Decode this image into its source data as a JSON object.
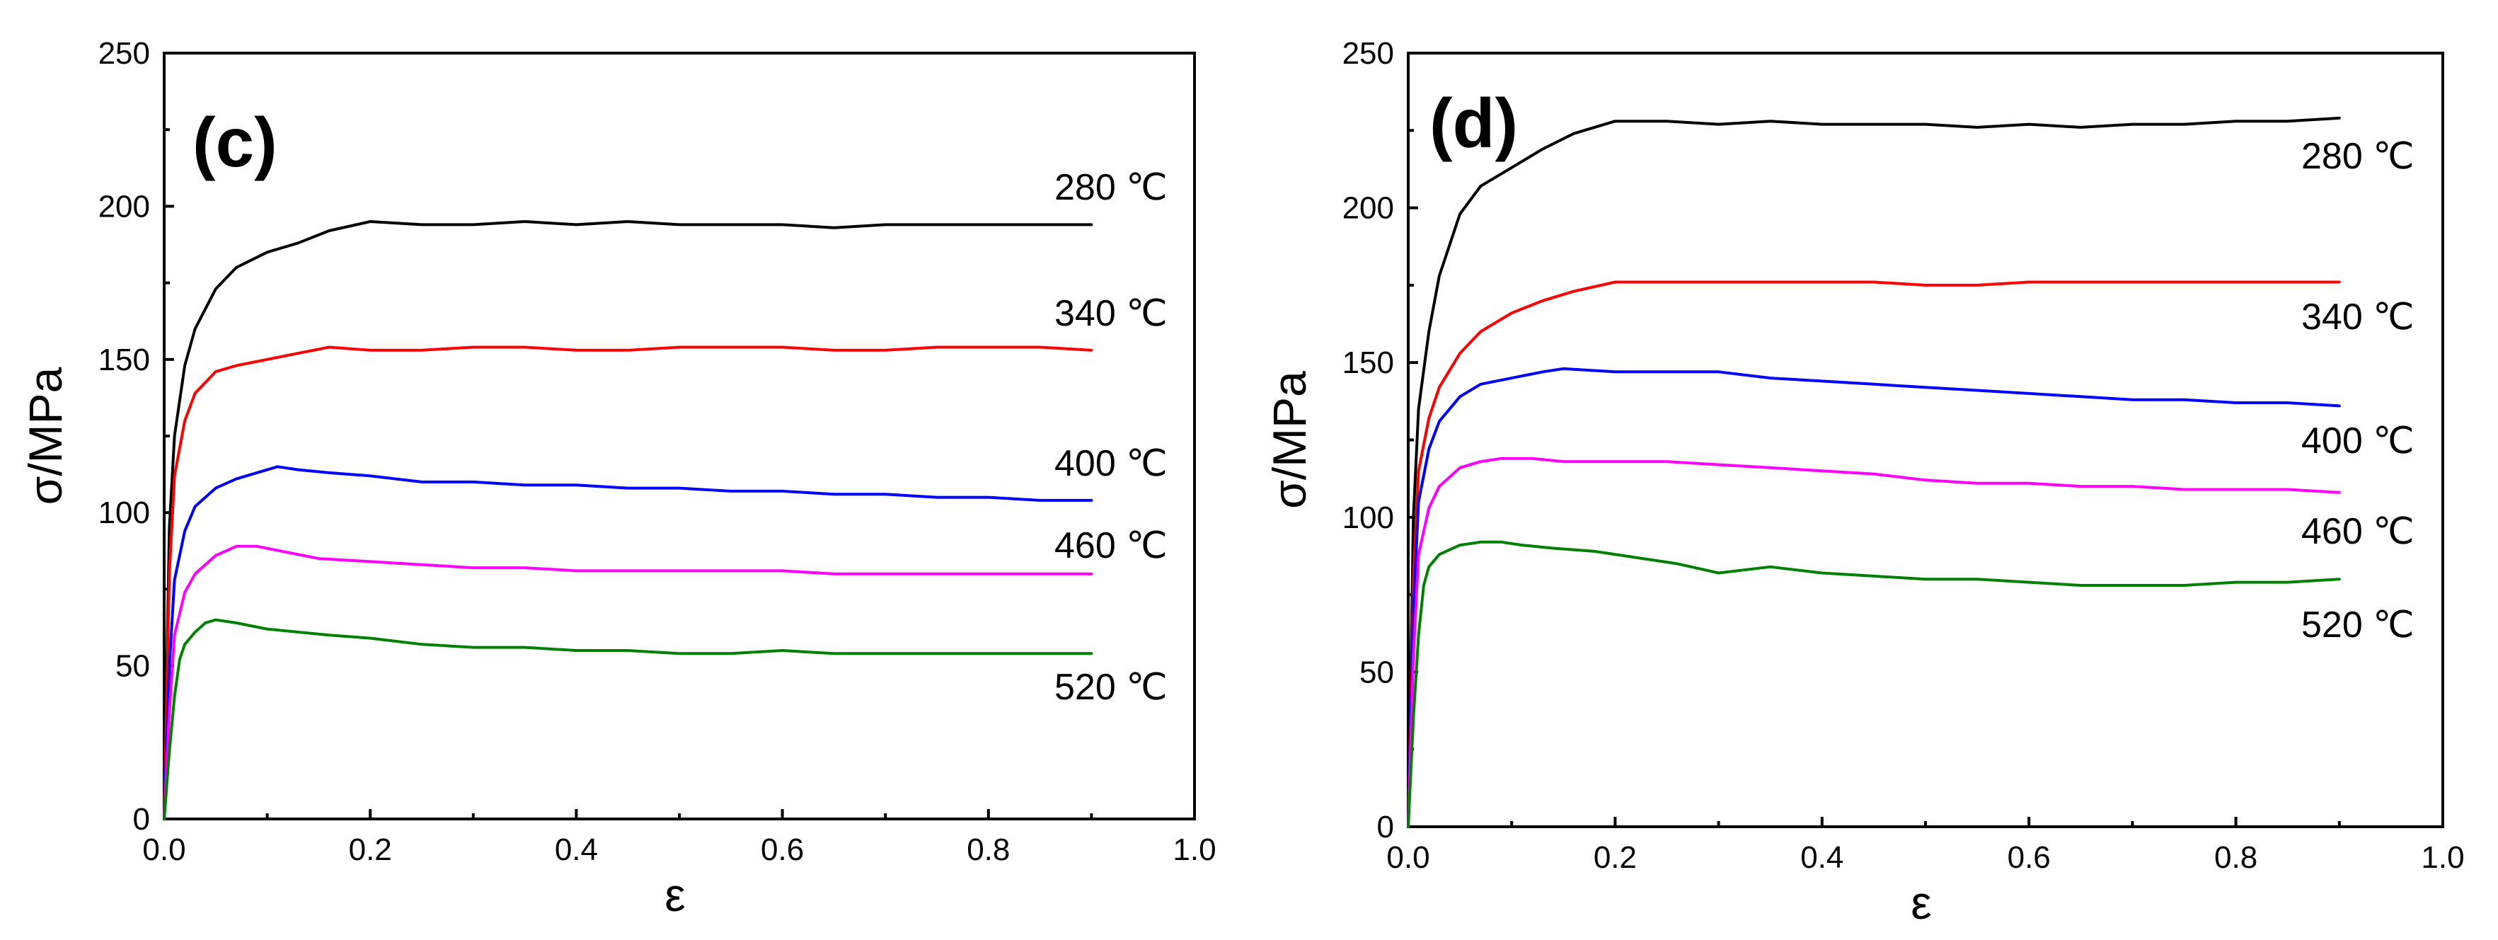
{
  "chart_data": [
    {
      "type": "line",
      "panel_label": "(c)",
      "xlabel": "ε",
      "ylabel": "σ/MPa",
      "xlim": [
        0,
        1.0
      ],
      "ylim": [
        0,
        250
      ],
      "xticks": [
        "0.0",
        "0.2",
        "0.4",
        "0.6",
        "0.8",
        "1.0"
      ],
      "yticks": [
        "0",
        "50",
        "100",
        "150",
        "200",
        "250"
      ],
      "grid": false,
      "series": [
        {
          "name": "280 ℃",
          "color": "#000000",
          "x": [
            0,
            0.005,
            0.01,
            0.02,
            0.03,
            0.05,
            0.07,
            0.1,
            0.13,
            0.16,
            0.2,
            0.25,
            0.3,
            0.35,
            0.4,
            0.45,
            0.5,
            0.55,
            0.6,
            0.65,
            0.7,
            0.75,
            0.8,
            0.85,
            0.9
          ],
          "y": [
            0,
            95,
            125,
            148,
            160,
            173,
            180,
            185,
            188,
            192,
            195,
            194,
            194,
            195,
            194,
            195,
            194,
            194,
            194,
            193,
            194,
            194,
            194,
            194,
            194
          ]
        },
        {
          "name": "340 ℃",
          "color": "#ff0000",
          "x": [
            0,
            0.005,
            0.01,
            0.02,
            0.03,
            0.05,
            0.07,
            0.1,
            0.13,
            0.16,
            0.2,
            0.25,
            0.3,
            0.35,
            0.4,
            0.45,
            0.5,
            0.55,
            0.6,
            0.65,
            0.7,
            0.75,
            0.8,
            0.85,
            0.9
          ],
          "y": [
            0,
            80,
            112,
            130,
            139,
            146,
            148,
            150,
            152,
            154,
            153,
            153,
            154,
            154,
            153,
            153,
            154,
            154,
            154,
            153,
            153,
            154,
            154,
            154,
            153
          ]
        },
        {
          "name": "400 ℃",
          "color": "#0000ff",
          "x": [
            0,
            0.005,
            0.01,
            0.02,
            0.03,
            0.05,
            0.07,
            0.09,
            0.11,
            0.13,
            0.16,
            0.2,
            0.25,
            0.3,
            0.35,
            0.4,
            0.45,
            0.5,
            0.55,
            0.6,
            0.65,
            0.7,
            0.75,
            0.8,
            0.85,
            0.9
          ],
          "y": [
            0,
            50,
            78,
            94,
            102,
            108,
            111,
            113,
            115,
            114,
            113,
            112,
            110,
            110,
            109,
            109,
            108,
            108,
            107,
            107,
            106,
            106,
            105,
            105,
            104,
            104
          ]
        },
        {
          "name": "460 ℃",
          "color": "#ff00ff",
          "x": [
            0,
            0.005,
            0.01,
            0.02,
            0.03,
            0.05,
            0.07,
            0.09,
            0.12,
            0.15,
            0.2,
            0.25,
            0.3,
            0.35,
            0.4,
            0.45,
            0.5,
            0.55,
            0.6,
            0.65,
            0.7,
            0.75,
            0.8,
            0.85,
            0.9
          ],
          "y": [
            0,
            35,
            60,
            74,
            80,
            86,
            89,
            89,
            87,
            85,
            84,
            83,
            82,
            82,
            81,
            81,
            81,
            81,
            81,
            80,
            80,
            80,
            80,
            80,
            80
          ]
        },
        {
          "name": "520 ℃",
          "color": "#008000",
          "x": [
            0,
            0.005,
            0.01,
            0.015,
            0.02,
            0.03,
            0.04,
            0.05,
            0.07,
            0.1,
            0.13,
            0.16,
            0.2,
            0.25,
            0.3,
            0.35,
            0.4,
            0.45,
            0.5,
            0.55,
            0.6,
            0.65,
            0.7,
            0.75,
            0.8,
            0.85,
            0.9
          ],
          "y": [
            0,
            22,
            40,
            52,
            57,
            61,
            64,
            65,
            64,
            62,
            61,
            60,
            59,
            57,
            56,
            56,
            55,
            55,
            54,
            54,
            55,
            54,
            54,
            54,
            54,
            54,
            54
          ]
        }
      ]
    },
    {
      "type": "line",
      "panel_label": "(d)",
      "xlabel": "ε",
      "ylabel": "σ/MPa",
      "xlim": [
        0,
        1.0
      ],
      "ylim": [
        0,
        250
      ],
      "xticks": [
        "0.0",
        "0.2",
        "0.4",
        "0.6",
        "0.8",
        "1.0"
      ],
      "yticks": [
        "0",
        "50",
        "100",
        "150",
        "200",
        "250"
      ],
      "grid": false,
      "series": [
        {
          "name": "280 ℃",
          "color": "#000000",
          "x": [
            0,
            0.005,
            0.01,
            0.02,
            0.03,
            0.05,
            0.07,
            0.1,
            0.13,
            0.16,
            0.2,
            0.25,
            0.3,
            0.35,
            0.4,
            0.45,
            0.5,
            0.55,
            0.6,
            0.65,
            0.7,
            0.75,
            0.8,
            0.85,
            0.9
          ],
          "y": [
            0,
            100,
            135,
            160,
            178,
            198,
            207,
            213,
            219,
            224,
            228,
            228,
            227,
            228,
            227,
            227,
            227,
            226,
            227,
            226,
            227,
            227,
            228,
            228,
            229
          ]
        },
        {
          "name": "340 ℃",
          "color": "#ff0000",
          "x": [
            0,
            0.005,
            0.01,
            0.02,
            0.03,
            0.05,
            0.07,
            0.1,
            0.13,
            0.16,
            0.2,
            0.25,
            0.3,
            0.35,
            0.4,
            0.45,
            0.5,
            0.55,
            0.6,
            0.65,
            0.7,
            0.75,
            0.8,
            0.85,
            0.9
          ],
          "y": [
            0,
            80,
            115,
            132,
            142,
            153,
            160,
            166,
            170,
            173,
            176,
            176,
            176,
            176,
            176,
            176,
            175,
            175,
            176,
            176,
            176,
            176,
            176,
            176,
            176
          ]
        },
        {
          "name": "400 ℃",
          "color": "#0000ff",
          "x": [
            0,
            0.005,
            0.01,
            0.02,
            0.03,
            0.05,
            0.07,
            0.1,
            0.13,
            0.15,
            0.2,
            0.25,
            0.3,
            0.35,
            0.4,
            0.45,
            0.5,
            0.55,
            0.6,
            0.65,
            0.7,
            0.75,
            0.8,
            0.85,
            0.9
          ],
          "y": [
            0,
            70,
            105,
            122,
            131,
            139,
            143,
            145,
            147,
            148,
            147,
            147,
            147,
            145,
            144,
            143,
            142,
            141,
            140,
            139,
            138,
            138,
            137,
            137,
            136
          ]
        },
        {
          "name": "460 ℃",
          "color": "#ff00ff",
          "x": [
            0,
            0.005,
            0.01,
            0.02,
            0.03,
            0.05,
            0.07,
            0.09,
            0.12,
            0.15,
            0.2,
            0.25,
            0.3,
            0.35,
            0.4,
            0.45,
            0.5,
            0.55,
            0.6,
            0.65,
            0.7,
            0.75,
            0.8,
            0.85,
            0.9
          ],
          "y": [
            0,
            55,
            88,
            103,
            110,
            116,
            118,
            119,
            119,
            118,
            118,
            118,
            117,
            116,
            115,
            114,
            112,
            111,
            111,
            110,
            110,
            109,
            109,
            109,
            108
          ]
        },
        {
          "name": "520 ℃",
          "color": "#008000",
          "x": [
            0,
            0.005,
            0.01,
            0.015,
            0.02,
            0.03,
            0.05,
            0.07,
            0.09,
            0.11,
            0.14,
            0.18,
            0.22,
            0.26,
            0.3,
            0.35,
            0.4,
            0.45,
            0.5,
            0.55,
            0.6,
            0.65,
            0.7,
            0.75,
            0.8,
            0.85,
            0.9
          ],
          "y": [
            0,
            35,
            62,
            78,
            84,
            88,
            91,
            92,
            92,
            91,
            90,
            89,
            87,
            85,
            82,
            84,
            82,
            81,
            80,
            80,
            79,
            78,
            78,
            78,
            79,
            79,
            80
          ]
        }
      ]
    }
  ]
}
